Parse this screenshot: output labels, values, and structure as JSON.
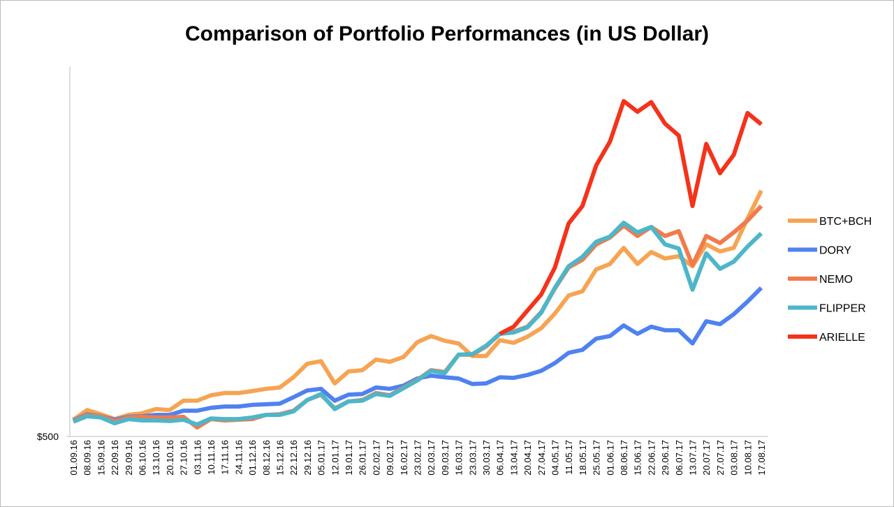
{
  "chart_data": {
    "type": "line",
    "title": "Comparison of Portfolio Performances (in US Dollar)",
    "categories": [
      "01.09.16",
      "08.09.16",
      "15.09.16",
      "22.09.16",
      "29.09.16",
      "06.10.16",
      "13.10.16",
      "20.10.16",
      "27.10.16",
      "03.11.16",
      "10.11.16",
      "17.11.16",
      "24.11.16",
      "01.12.16",
      "08.12.16",
      "15.12.16",
      "22.12.16",
      "29.12.16",
      "05.01.17",
      "12.01.17",
      "19.01.17",
      "26.01.17",
      "02.02.17",
      "09.02.17",
      "16.02.17",
      "23.02.17",
      "02.03.17",
      "09.03.17",
      "16.03.17",
      "23.03.17",
      "30.03.17",
      "06.04.17",
      "13.04.17",
      "20.04.17",
      "27.04.17",
      "04.05.17",
      "11.05.17",
      "18.05.17",
      "25.05.17",
      "01.06.17",
      "08.06.17",
      "15.06.17",
      "22.06.17",
      "29.06.17",
      "06.07.17",
      "13.07.17",
      "20.07.17",
      "27.07.17",
      "03.08.17",
      "10.08.17",
      "17.08.17"
    ],
    "series": [
      {
        "name": "BTC+BCH",
        "color": "#f6a453",
        "values": [
          1020,
          1320,
          1190,
          1040,
          1170,
          1220,
          1350,
          1320,
          1610,
          1610,
          1780,
          1850,
          1850,
          1910,
          1980,
          2020,
          2340,
          2760,
          2840,
          2150,
          2520,
          2560,
          2890,
          2820,
          2970,
          3430,
          3620,
          3470,
          3390,
          3000,
          3000,
          3490,
          3410,
          3600,
          3860,
          4320,
          4880,
          5010,
          5690,
          5860,
          6360,
          5860,
          6230,
          6030,
          6100,
          5790,
          6470,
          6250,
          6360,
          7270,
          8140
        ]
      },
      {
        "name": "DORY",
        "color": "#4f82ef",
        "values": [
          1000,
          1190,
          1130,
          1020,
          1110,
          1130,
          1170,
          1170,
          1300,
          1300,
          1390,
          1430,
          1430,
          1480,
          1500,
          1520,
          1720,
          1930,
          1980,
          1610,
          1800,
          1820,
          2020,
          1980,
          2080,
          2300,
          2390,
          2340,
          2300,
          2130,
          2150,
          2340,
          2320,
          2410,
          2540,
          2780,
          3100,
          3190,
          3540,
          3620,
          3950,
          3690,
          3910,
          3800,
          3800,
          3390,
          4080,
          3990,
          4300,
          4690,
          5120
        ]
      },
      {
        "name": "NEMO",
        "color": "#f27b4c",
        "values": [
          980,
          1170,
          1130,
          980,
          1090,
          1110,
          1090,
          1090,
          1110,
          780,
          1040,
          1000,
          1020,
          1040,
          1170,
          1190,
          1300,
          1630,
          1800,
          1370,
          1590,
          1630,
          1850,
          1780,
          2020,
          2260,
          2560,
          2500,
          3040,
          3040,
          3300,
          3690,
          3760,
          3910,
          4360,
          5100,
          5750,
          5990,
          6470,
          6680,
          7050,
          6730,
          7010,
          6730,
          6880,
          5820,
          6730,
          6510,
          6840,
          7210,
          7660
        ]
      },
      {
        "name": "FLIPPER",
        "color": "#4db6c9",
        "values": [
          960,
          1130,
          1090,
          910,
          1040,
          1000,
          1000,
          980,
          1020,
          870,
          1060,
          1040,
          1040,
          1090,
          1170,
          1170,
          1280,
          1630,
          1820,
          1350,
          1590,
          1610,
          1820,
          1760,
          2000,
          2240,
          2540,
          2470,
          3040,
          3060,
          3320,
          3690,
          3730,
          3890,
          4340,
          5120,
          5790,
          6080,
          6550,
          6710,
          7140,
          6840,
          7010,
          6470,
          6340,
          5060,
          6190,
          5710,
          5930,
          6400,
          6810
        ]
      },
      {
        "name": "ARIELLE",
        "color": "#f5321b",
        "values": [
          null,
          null,
          null,
          null,
          null,
          null,
          null,
          null,
          null,
          null,
          null,
          null,
          null,
          null,
          null,
          null,
          null,
          null,
          null,
          null,
          null,
          null,
          null,
          null,
          null,
          null,
          null,
          null,
          null,
          null,
          null,
          3690,
          3910,
          4410,
          4910,
          5750,
          7120,
          7660,
          8920,
          9660,
          10920,
          10590,
          10890,
          10220,
          9850,
          7660,
          9590,
          8680,
          9250,
          10550,
          10200
        ]
      }
    ],
    "ylim": [
      500,
      12000
    ],
    "yticks": [
      {
        "value": 500,
        "label": "$500"
      }
    ],
    "legend": "right"
  }
}
